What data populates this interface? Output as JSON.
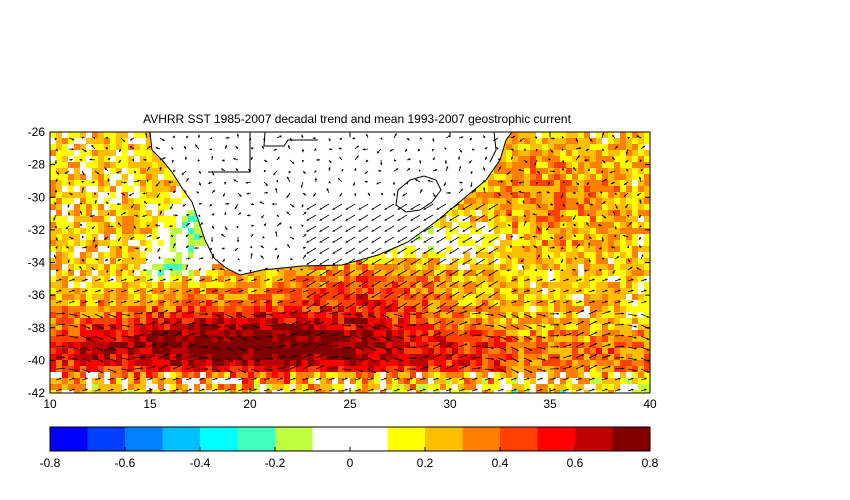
{
  "chart_data": {
    "type": "heatmap",
    "title": "AVHRR SST 1985-2007 decadal trend and mean 1993-2007 geostrophic current",
    "xlabel": "",
    "ylabel": "",
    "xlim": [
      10,
      40
    ],
    "ylim": [
      -42,
      -26
    ],
    "x_ticks": [
      "10",
      "15",
      "20",
      "25",
      "30",
      "35",
      "40"
    ],
    "y_ticks": [
      "-26",
      "-28",
      "-30",
      "-32",
      "-34",
      "-36",
      "-38",
      "-40",
      "-42"
    ],
    "colorbar": {
      "range": [
        -0.8,
        0.8
      ],
      "tick_labels": [
        "-0.8",
        "-0.6",
        "-0.4",
        "-0.2",
        "0",
        "0.2",
        "0.4",
        "0.6",
        "0.8"
      ],
      "colors": [
        "#0000ff",
        "#0040ff",
        "#0080ff",
        "#00bfff",
        "#00ffff",
        "#40ffbf",
        "#bfff40",
        "#ffffff",
        "#ffffff",
        "#ffff00",
        "#ffbf00",
        "#ff8000",
        "#ff4000",
        "#ff0000",
        "#bf0000",
        "#800000"
      ]
    }
  }
}
